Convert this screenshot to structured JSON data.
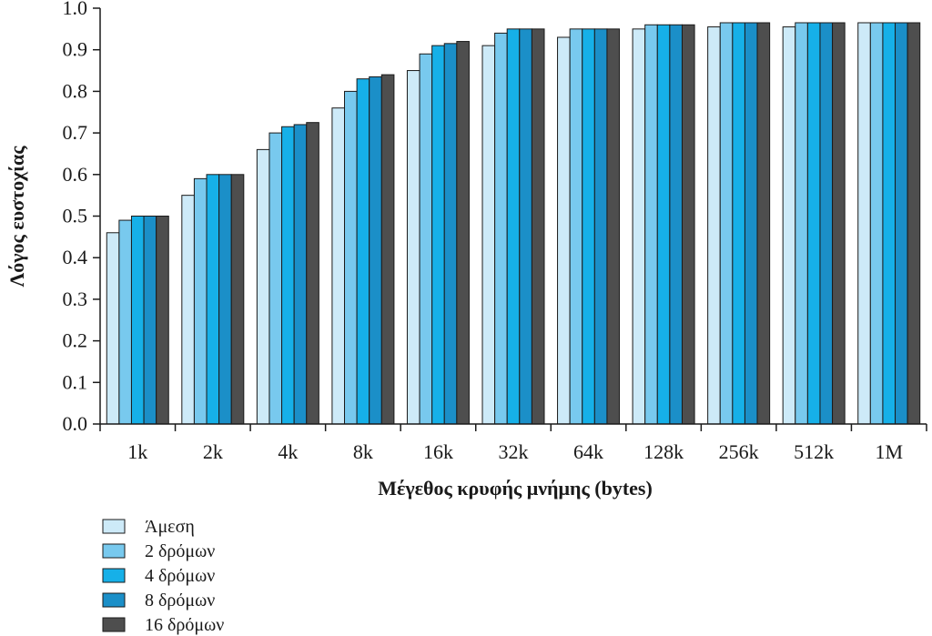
{
  "chart_data": {
    "type": "bar",
    "xlabel": "Μέγεθος κρυφής μνήμης (bytes)",
    "ylabel": "Λόγος ευστοχίας",
    "ylim": [
      0,
      1.0
    ],
    "yticks": [
      "0.0",
      "0.1",
      "0.2",
      "0.3",
      "0.4",
      "0.5",
      "0.6",
      "0.7",
      "0.8",
      "0.9",
      "1.0"
    ],
    "grid": false,
    "legend_position": "bottom-left",
    "categories": [
      "1k",
      "2k",
      "4k",
      "8k",
      "16k",
      "32k",
      "64k",
      "128k",
      "256k",
      "512k",
      "1M"
    ],
    "series": [
      {
        "name": "Άμεση",
        "color": "#cdeaf8",
        "values": [
          0.46,
          0.55,
          0.66,
          0.76,
          0.85,
          0.91,
          0.93,
          0.95,
          0.955,
          0.955,
          0.965
        ]
      },
      {
        "name": "2 δρόμων",
        "color": "#78c9ee",
        "values": [
          0.49,
          0.59,
          0.7,
          0.8,
          0.89,
          0.94,
          0.95,
          0.96,
          0.965,
          0.965,
          0.965
        ]
      },
      {
        "name": "4 δρόμων",
        "color": "#16b0e8",
        "values": [
          0.5,
          0.6,
          0.715,
          0.83,
          0.91,
          0.95,
          0.95,
          0.96,
          0.965,
          0.965,
          0.965
        ]
      },
      {
        "name": "8 δρόμων",
        "color": "#1b8fc8",
        "values": [
          0.5,
          0.6,
          0.72,
          0.835,
          0.915,
          0.95,
          0.95,
          0.96,
          0.965,
          0.965,
          0.965
        ]
      },
      {
        "name": "16 δρόμων",
        "color": "#4e4e4e",
        "values": [
          0.5,
          0.6,
          0.725,
          0.84,
          0.92,
          0.95,
          0.95,
          0.96,
          0.965,
          0.965,
          0.965
        ]
      }
    ]
  }
}
